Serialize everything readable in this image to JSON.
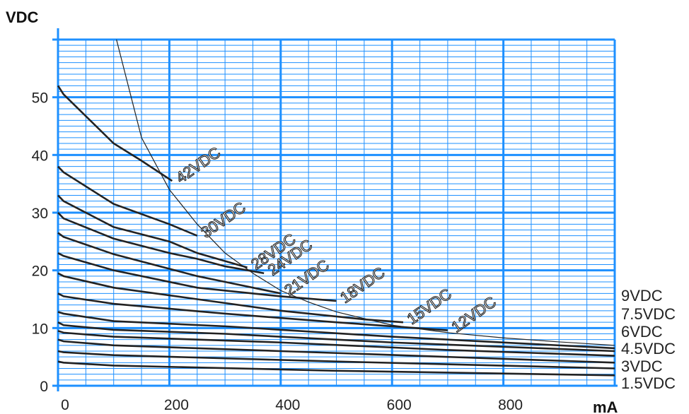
{
  "chart_data": {
    "type": "line",
    "title": "",
    "ylabel": "VDC",
    "xlabel": "mA",
    "xlim": [
      0,
      1000
    ],
    "ylim": [
      0,
      60
    ],
    "x_ticks": [
      "0",
      "200",
      "400",
      "600",
      "800"
    ],
    "y_ticks": [
      "0",
      "10",
      "20",
      "30",
      "40",
      "50"
    ],
    "grid": true,
    "colors": {
      "grid": "#1e90ff",
      "curve": "#222222",
      "axis": "#1e90ff"
    },
    "series": [
      {
        "name": "42VDC",
        "label_pos": "inline",
        "points": [
          [
            0,
            52
          ],
          [
            10,
            50.5
          ],
          [
            100,
            42
          ],
          [
            150,
            39
          ],
          [
            205,
            35.5
          ]
        ]
      },
      {
        "name": "30VDC",
        "label_pos": "inline",
        "points": [
          [
            0,
            38
          ],
          [
            10,
            37
          ],
          [
            100,
            31.5
          ],
          [
            200,
            28
          ],
          [
            250,
            26
          ]
        ]
      },
      {
        "name": "28VDC",
        "label_pos": "inline",
        "points": [
          [
            0,
            33
          ],
          [
            10,
            32
          ],
          [
            100,
            27.5
          ],
          [
            200,
            25
          ],
          [
            250,
            23
          ],
          [
            340,
            20.5
          ]
        ]
      },
      {
        "name": "24VDC",
        "label_pos": "inline",
        "points": [
          [
            0,
            30
          ],
          [
            10,
            29
          ],
          [
            100,
            25.5
          ],
          [
            200,
            23
          ],
          [
            250,
            22
          ],
          [
            300,
            20.7
          ],
          [
            370,
            19.5
          ]
        ]
      },
      {
        "name": "21VDC",
        "label_pos": "inline",
        "points": [
          [
            0,
            26.5
          ],
          [
            10,
            25.8
          ],
          [
            100,
            22.8
          ],
          [
            250,
            19
          ],
          [
            300,
            18
          ],
          [
            400,
            16
          ]
        ]
      },
      {
        "name": "18VDC",
        "label_pos": "inline",
        "points": [
          [
            0,
            23
          ],
          [
            10,
            22.5
          ],
          [
            100,
            20
          ],
          [
            250,
            17
          ],
          [
            400,
            15.5
          ],
          [
            500,
            14.7
          ]
        ]
      },
      {
        "name": "15VDC",
        "label_pos": "inline",
        "points": [
          [
            0,
            19.5
          ],
          [
            10,
            19
          ],
          [
            100,
            17
          ],
          [
            250,
            15
          ],
          [
            400,
            13
          ],
          [
            550,
            11.5
          ],
          [
            620,
            11
          ]
        ]
      },
      {
        "name": "12VDC",
        "label_pos": "inline",
        "points": [
          [
            0,
            16
          ],
          [
            10,
            15.5
          ],
          [
            100,
            14.2
          ],
          [
            300,
            12.5
          ],
          [
            500,
            11
          ],
          [
            700,
            9.6
          ]
        ]
      },
      {
        "name": "9VDC",
        "label_pos": "right",
        "points": [
          [
            0,
            12.8
          ],
          [
            10,
            12.5
          ],
          [
            100,
            11.2
          ],
          [
            300,
            10.3
          ],
          [
            600,
            8.5
          ],
          [
            1000,
            6.5
          ]
        ]
      },
      {
        "name": "7.5VDC",
        "label_pos": "right",
        "points": [
          [
            0,
            11
          ],
          [
            10,
            10.5
          ],
          [
            100,
            9.7
          ],
          [
            300,
            9
          ],
          [
            600,
            7.5
          ],
          [
            1000,
            6
          ]
        ]
      },
      {
        "name": "6VDC",
        "label_pos": "right",
        "points": [
          [
            0,
            9.5
          ],
          [
            10,
            9.2
          ],
          [
            100,
            8.5
          ],
          [
            400,
            7.5
          ],
          [
            700,
            6.2
          ],
          [
            1000,
            5.2
          ]
        ]
      },
      {
        "name": "4.5VDC",
        "label_pos": "right",
        "points": [
          [
            0,
            8
          ],
          [
            10,
            7.7
          ],
          [
            100,
            7
          ],
          [
            400,
            6
          ],
          [
            700,
            5
          ],
          [
            1000,
            4
          ]
        ]
      },
      {
        "name": "3VDC",
        "label_pos": "right",
        "points": [
          [
            0,
            6
          ],
          [
            10,
            5.8
          ],
          [
            100,
            5.3
          ],
          [
            500,
            4.2
          ],
          [
            1000,
            3
          ]
        ]
      },
      {
        "name": "1.5VDC",
        "label_pos": "right",
        "points": [
          [
            0,
            4.2
          ],
          [
            10,
            4
          ],
          [
            100,
            3.5
          ],
          [
            500,
            2.6
          ],
          [
            1000,
            1.8
          ]
        ]
      }
    ],
    "limit_curve": {
      "points": [
        [
          105,
          60
        ],
        [
          150,
          43
        ],
        [
          200,
          34
        ],
        [
          250,
          28
        ],
        [
          300,
          23
        ],
        [
          350,
          19.5
        ],
        [
          400,
          16.5
        ],
        [
          450,
          14.5
        ],
        [
          500,
          12.8
        ],
        [
          600,
          10.5
        ],
        [
          700,
          9.2
        ],
        [
          800,
          8.3
        ],
        [
          900,
          7.6
        ],
        [
          1000,
          7
        ]
      ]
    }
  }
}
